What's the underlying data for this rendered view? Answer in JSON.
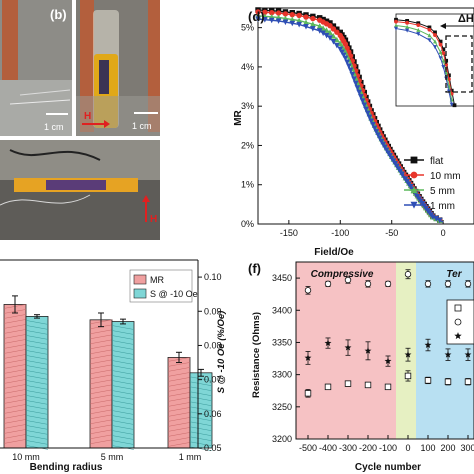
{
  "panel_labels": {
    "b": "(b)",
    "d": "(d)",
    "f": "(f)"
  },
  "photos": {
    "scale_left": "1 cm",
    "scale_right": "1 cm",
    "arrow_h_top": "H",
    "arrow_h_bottom": "H"
  },
  "colors": {
    "flat": "#111111",
    "r10": "#e8352b",
    "r5": "#5cb85c",
    "r1": "#2f4fb5",
    "mr_bar": "#f0a0a0",
    "s_bar": "#7fd6d6",
    "compressive_bg": "#f6c2c4",
    "zero_bg": "#e6f0c2",
    "tensile_bg": "#b8e0f2"
  },
  "chart_data": [
    {
      "id": "d",
      "type": "line",
      "xlabel": "Field/Oe",
      "ylabel": "MR",
      "xlim": [
        -180,
        30
      ],
      "ylim": [
        0,
        5.5
      ],
      "xticks": [
        -150,
        -100,
        -50,
        0
      ],
      "xtick_labels": [
        "-150",
        "-100",
        "-50",
        "0"
      ],
      "yticks": [
        0,
        1,
        2,
        3,
        4,
        5
      ],
      "ytick_labels": [
        "0%",
        "1%",
        "2%",
        "3%",
        "4%",
        "5%"
      ],
      "legend_position": "bottom-right",
      "inset_label": "ΔH",
      "series": [
        {
          "name": "flat",
          "marker": "square",
          "color_key": "flat",
          "x": [
            -180,
            -160,
            -140,
            -120,
            -110,
            -100,
            -95,
            -90,
            -85,
            -80,
            -75,
            -70,
            -65,
            -60,
            -55,
            -50,
            -45,
            -40,
            -35,
            -30,
            -25,
            -20,
            -15,
            -10,
            0
          ],
          "y": [
            5.45,
            5.42,
            5.36,
            5.25,
            5.12,
            4.88,
            4.68,
            4.38,
            4.0,
            3.6,
            3.22,
            2.88,
            2.58,
            2.3,
            2.05,
            1.82,
            1.6,
            1.38,
            1.17,
            0.96,
            0.76,
            0.56,
            0.38,
            0.2,
            0.05
          ]
        },
        {
          "name": "10 mm",
          "marker": "circle",
          "color_key": "r10",
          "x": [
            -180,
            -160,
            -140,
            -120,
            -110,
            -100,
            -95,
            -90,
            -85,
            -80,
            -75,
            -70,
            -65,
            -60,
            -55,
            -50,
            -45,
            -40,
            -35,
            -30,
            -25,
            -20,
            -15,
            -10,
            0
          ],
          "y": [
            5.4,
            5.37,
            5.31,
            5.19,
            5.05,
            4.8,
            4.58,
            4.28,
            3.9,
            3.52,
            3.15,
            2.82,
            2.52,
            2.25,
            2.0,
            1.78,
            1.56,
            1.35,
            1.14,
            0.94,
            0.74,
            0.54,
            0.36,
            0.19,
            0.05
          ]
        },
        {
          "name": "5 mm",
          "marker": "triangle-up",
          "color_key": "r5",
          "x": [
            -180,
            -160,
            -140,
            -120,
            -110,
            -100,
            -95,
            -90,
            -85,
            -80,
            -75,
            -70,
            -65,
            -60,
            -55,
            -50,
            -45,
            -40,
            -35,
            -30,
            -25,
            -20,
            -15,
            -10,
            0
          ],
          "y": [
            5.3,
            5.26,
            5.18,
            5.04,
            4.88,
            4.6,
            4.38,
            4.08,
            3.72,
            3.36,
            3.02,
            2.7,
            2.42,
            2.17,
            1.94,
            1.72,
            1.51,
            1.31,
            1.11,
            0.91,
            0.72,
            0.53,
            0.35,
            0.18,
            0.05
          ]
        },
        {
          "name": "1 mm",
          "marker": "triangle-down",
          "color_key": "r1",
          "x": [
            -180,
            -160,
            -140,
            -120,
            -110,
            -100,
            -95,
            -90,
            -85,
            -80,
            -75,
            -70,
            -65,
            -60,
            -55,
            -50,
            -45,
            -40,
            -35,
            -30,
            -25,
            -20,
            -15,
            -10,
            0
          ],
          "y": [
            5.22,
            5.17,
            5.08,
            4.92,
            4.74,
            4.45,
            4.22,
            3.92,
            3.58,
            3.24,
            2.92,
            2.62,
            2.35,
            2.1,
            1.88,
            1.67,
            1.47,
            1.27,
            1.08,
            0.89,
            0.7,
            0.52,
            0.34,
            0.18,
            0.05
          ]
        }
      ]
    },
    {
      "id": "e",
      "type": "bar",
      "xlabel": "Bending radius",
      "y2label": "S @ -10 Oe (%/Oe)",
      "categories": [
        "10 mm",
        "5 mm",
        "1 mm"
      ],
      "y2lim": [
        0.05,
        0.105
      ],
      "y2ticks": [
        0.05,
        0.06,
        0.07,
        0.08,
        0.09,
        0.1
      ],
      "y2tick_labels": [
        "0.05",
        "0.06",
        "0.07",
        "0.08",
        "0.09",
        "0.10"
      ],
      "legend_position": "top-right",
      "series": [
        {
          "name": "MR",
          "axis": "right-scale",
          "color_key": "mr_bar",
          "values": [
            0.092,
            0.0875,
            0.0765
          ],
          "errors": [
            0.0025,
            0.002,
            0.0015
          ]
        },
        {
          "name": "S @ -10 Oe",
          "axis": "right",
          "color_key": "s_bar",
          "values": [
            0.0885,
            0.087,
            0.072
          ],
          "errors": [
            0.0005,
            0.0007,
            0.001
          ]
        }
      ]
    },
    {
      "id": "f",
      "type": "scatter",
      "xlabel": "Cycle number",
      "ylabel": "Resistance (Ohms)",
      "xlim": [
        -560,
        330
      ],
      "ylim": [
        3200,
        3475
      ],
      "xticks": [
        -500,
        -400,
        -300,
        -200,
        -100,
        0,
        100,
        200,
        300
      ],
      "xtick_labels": [
        "-500",
        "-400",
        "-300",
        "-200",
        "-100",
        "0",
        "100",
        "200",
        "300"
      ],
      "yticks": [
        3200,
        3250,
        3300,
        3350,
        3400,
        3450
      ],
      "ytick_labels": [
        "3200",
        "3250",
        "3300",
        "3350",
        "3400",
        "3450"
      ],
      "regions": [
        {
          "label": "Compressive",
          "x0": -560,
          "x1": -60,
          "color_key": "compressive_bg"
        },
        {
          "label": "",
          "x0": -60,
          "x1": 40,
          "color_key": "zero_bg"
        },
        {
          "label": "Ter",
          "x0": 40,
          "x1": 330,
          "color_key": "tensile_bg"
        }
      ],
      "series": [
        {
          "name": "open-circle",
          "marker": "circle-open",
          "x": [
            -500,
            -400,
            -300,
            -200,
            -100,
            0,
            100,
            200,
            300
          ],
          "y": [
            3431,
            3441,
            3447,
            3441,
            3441,
            3456,
            3441,
            3441,
            3441
          ],
          "err": [
            6,
            4,
            5,
            5,
            4,
            7,
            5,
            5,
            5
          ]
        },
        {
          "name": "star",
          "marker": "star",
          "x": [
            -500,
            -400,
            -300,
            -200,
            -100,
            0,
            100,
            200,
            300
          ],
          "y": [
            3326,
            3349,
            3342,
            3337,
            3321,
            3331,
            3346,
            3331,
            3331
          ],
          "err": [
            10,
            8,
            12,
            14,
            8,
            10,
            9,
            9,
            9
          ]
        },
        {
          "name": "open-square",
          "marker": "square-open",
          "x": [
            -500,
            -400,
            -300,
            -200,
            -100,
            0,
            100,
            200,
            300
          ],
          "y": [
            3271,
            3281,
            3286,
            3284,
            3281,
            3298,
            3291,
            3289,
            3289
          ],
          "err": [
            6,
            4,
            4,
            4,
            3,
            8,
            5,
            5,
            5
          ]
        }
      ]
    }
  ]
}
